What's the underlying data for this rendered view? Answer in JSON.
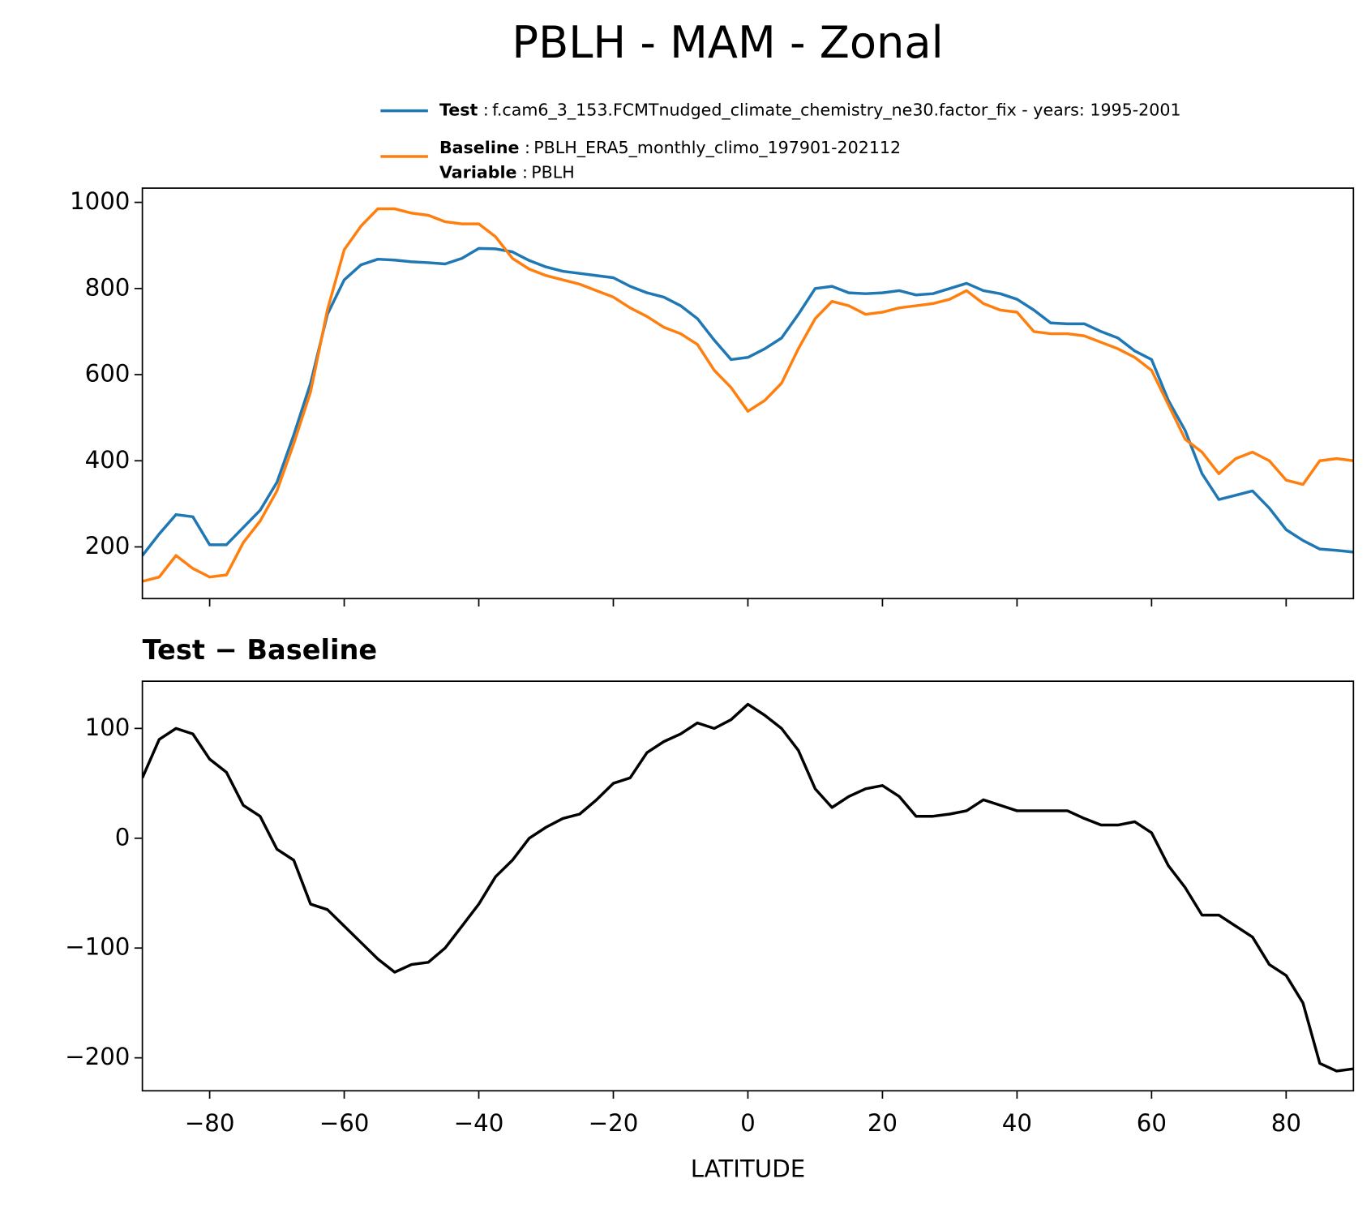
{
  "chart_data": [
    {
      "type": "line",
      "title": "PBLH - MAM - Zonal",
      "x": [
        -90,
        -87.5,
        -85,
        -82.5,
        -80,
        -77.5,
        -75,
        -72.5,
        -70,
        -67.5,
        -65,
        -62.5,
        -60,
        -57.5,
        -55,
        -52.5,
        -50,
        -47.5,
        -45,
        -42.5,
        -40,
        -37.5,
        -35,
        -32.5,
        -30,
        -27.5,
        -25,
        -22.5,
        -20,
        -17.5,
        -15,
        -12.5,
        -10,
        -7.5,
        -5,
        -2.5,
        0,
        2.5,
        5,
        7.5,
        10,
        12.5,
        15,
        17.5,
        20,
        22.5,
        25,
        27.5,
        30,
        32.5,
        35,
        37.5,
        40,
        42.5,
        45,
        47.5,
        50,
        52.5,
        55,
        57.5,
        60,
        62.5,
        65,
        67.5,
        70,
        72.5,
        75,
        77.5,
        80,
        82.5,
        85,
        87.5,
        90
      ],
      "series": [
        {
          "name": "Test",
          "description": "f.cam6_3_153.FCMTnudged_climate_chemistry_ne30.factor_fix - years: 1995-2001",
          "color": "#1f77b4",
          "values": [
            180,
            230,
            275,
            270,
            205,
            205,
            245,
            285,
            350,
            460,
            580,
            740,
            820,
            855,
            868,
            866,
            862,
            860,
            857,
            870,
            893,
            892,
            885,
            865,
            850,
            840,
            835,
            830,
            825,
            805,
            790,
            780,
            760,
            730,
            680,
            635,
            640,
            660,
            685,
            740,
            800,
            805,
            790,
            788,
            790,
            795,
            785,
            788,
            800,
            812,
            795,
            788,
            775,
            750,
            720,
            718,
            718,
            700,
            685,
            655,
            635,
            540,
            470,
            370,
            310,
            320,
            330,
            290,
            240,
            215,
            195,
            192,
            188
          ]
        },
        {
          "name": "Baseline",
          "description": "PBLH_ERA5_monthly_climo_197901-202112",
          "color": "#ff7f0e",
          "values": [
            120,
            130,
            180,
            150,
            130,
            135,
            210,
            260,
            330,
            440,
            560,
            750,
            890,
            945,
            985,
            985,
            975,
            970,
            955,
            950,
            950,
            920,
            870,
            845,
            830,
            820,
            810,
            795,
            780,
            755,
            735,
            710,
            695,
            670,
            610,
            570,
            515,
            540,
            580,
            660,
            730,
            770,
            760,
            740,
            745,
            755,
            760,
            765,
            775,
            795,
            765,
            750,
            745,
            700,
            695,
            695,
            690,
            675,
            660,
            640,
            610,
            530,
            450,
            420,
            370,
            405,
            420,
            400,
            355,
            345,
            400,
            405,
            400
          ]
        }
      ],
      "legend_separator": ":",
      "legend_notes": [
        {
          "label": "Variable",
          "text": "PBLH"
        }
      ],
      "xlim": [
        -90,
        90
      ],
      "xticks": [
        -80,
        -60,
        -40,
        -20,
        0,
        20,
        40,
        60,
        80
      ],
      "xtick_labels": false,
      "ylim": [
        80,
        1033
      ],
      "yticks": [
        200,
        400,
        600,
        800,
        1000
      ]
    },
    {
      "type": "line",
      "title": "Test − Baseline",
      "xlabel": "LATITUDE",
      "x": [
        -90,
        -87.5,
        -85,
        -82.5,
        -80,
        -77.5,
        -75,
        -72.5,
        -70,
        -67.5,
        -65,
        -62.5,
        -60,
        -57.5,
        -55,
        -52.5,
        -50,
        -47.5,
        -45,
        -42.5,
        -40,
        -37.5,
        -35,
        -32.5,
        -30,
        -27.5,
        -25,
        -22.5,
        -20,
        -17.5,
        -15,
        -12.5,
        -10,
        -7.5,
        -5,
        -2.5,
        0,
        2.5,
        5,
        7.5,
        10,
        12.5,
        15,
        17.5,
        20,
        22.5,
        25,
        27.5,
        30,
        32.5,
        35,
        37.5,
        40,
        42.5,
        45,
        47.5,
        50,
        52.5,
        55,
        57.5,
        60,
        62.5,
        65,
        67.5,
        70,
        72.5,
        75,
        77.5,
        80,
        82.5,
        85,
        87.5,
        90
      ],
      "series": [
        {
          "color": "#000000",
          "values": [
            55,
            90,
            100,
            95,
            72,
            60,
            30,
            20,
            -10,
            -20,
            -60,
            -65,
            -80,
            -95,
            -110,
            -122,
            -115,
            -113,
            -100,
            -80,
            -60,
            -35,
            -20,
            0,
            10,
            18,
            22,
            35,
            50,
            55,
            78,
            88,
            95,
            105,
            100,
            108,
            122,
            112,
            100,
            80,
            45,
            28,
            38,
            45,
            48,
            38,
            20,
            20,
            22,
            25,
            35,
            30,
            25,
            25,
            25,
            25,
            18,
            12,
            12,
            15,
            5,
            -25,
            -45,
            -70,
            -70,
            -80,
            -90,
            -115,
            -125,
            -150,
            -205,
            -212,
            -210
          ]
        }
      ],
      "xlim": [
        -90,
        90
      ],
      "xticks": [
        {
          "value": -80,
          "label": "−80"
        },
        {
          "value": -60,
          "label": "−60"
        },
        {
          "value": -40,
          "label": "−40"
        },
        {
          "value": -20,
          "label": "−20"
        },
        0,
        20,
        40,
        60,
        80
      ],
      "ylim": [
        -230,
        143
      ],
      "yticks": [
        {
          "value": -200,
          "label": "−200"
        },
        {
          "value": -100,
          "label": "−100"
        },
        0,
        100
      ]
    }
  ]
}
